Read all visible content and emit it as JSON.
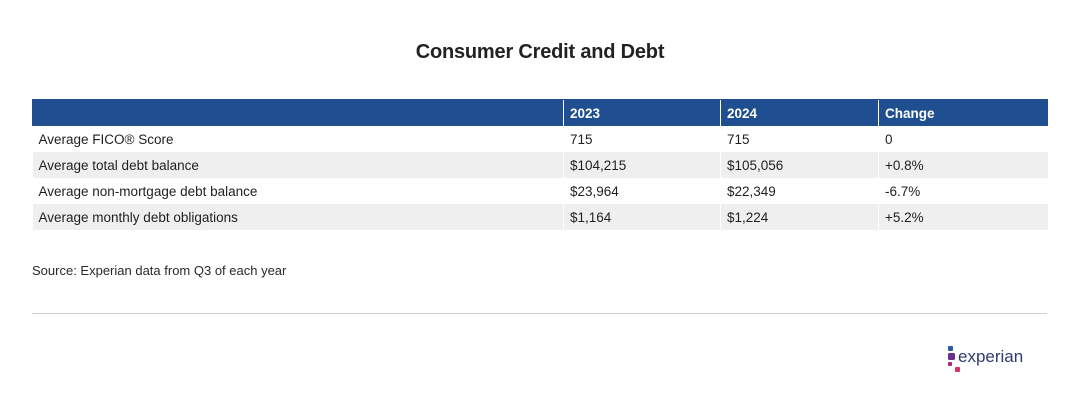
{
  "title": "Consumer Credit and Debt",
  "table": {
    "headers": [
      "",
      "2023",
      "2024",
      "Change"
    ],
    "rows": [
      [
        "Average FICO® Score",
        "715",
        "715",
        "0"
      ],
      [
        "Average total debt balance",
        "$104,215",
        "$105,056",
        "+0.8%"
      ],
      [
        "Average non-mortgage debt balance",
        "$23,964",
        "$22,349",
        "-6.7%"
      ],
      [
        "Average monthly debt obligations",
        "$1,164",
        "$1,224",
        "+5.2%"
      ]
    ]
  },
  "source": "Source: Experian data from Q3 of each year",
  "brand": {
    "name": "experian",
    "icon": "experian-logo-icon",
    "colors": {
      "header_bg": "#1f4e91",
      "dot_blue": "#2e5aa8",
      "dot_purple": "#6b2f8e",
      "dot_magenta": "#b0267a",
      "dot_pink": "#d6336c",
      "text": "#2e3a6e"
    }
  }
}
